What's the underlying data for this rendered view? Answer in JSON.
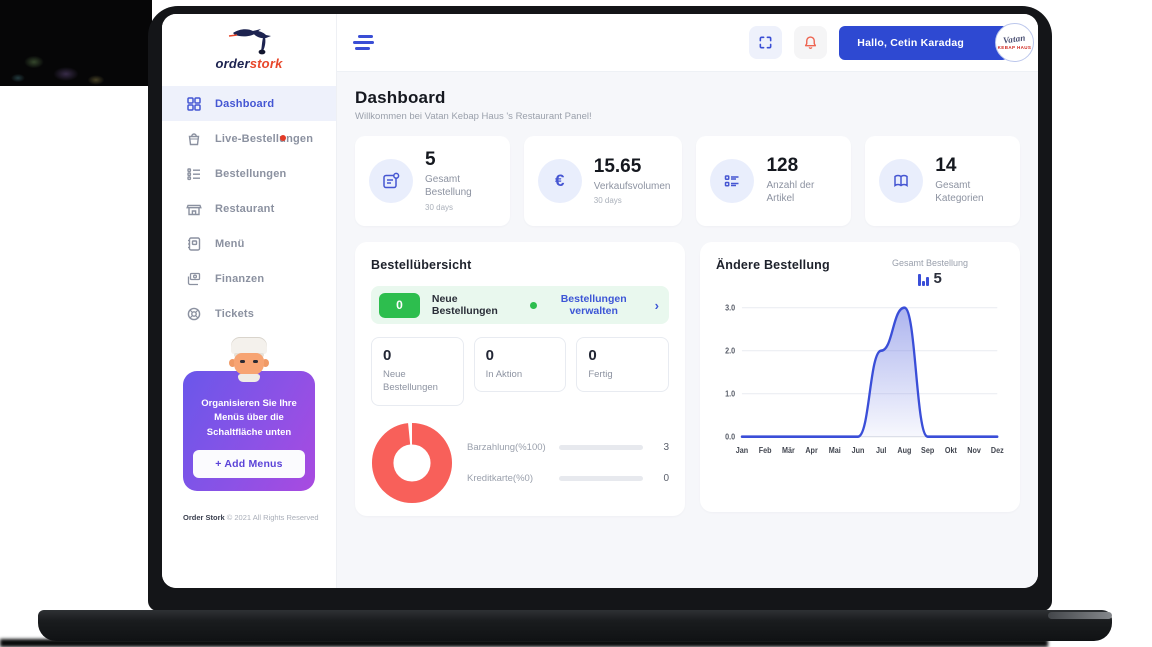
{
  "brand": {
    "word_primary": "order",
    "word_accent": "stork"
  },
  "topbar": {
    "greeting": "Hallo, Cetin Karadag",
    "avatar_line1": "Vatan",
    "avatar_line2": "KEBAP HAUS"
  },
  "sidebar": {
    "items": [
      {
        "label": "Dashboard"
      },
      {
        "label": "Live-Bestellungen"
      },
      {
        "label": "Bestellungen"
      },
      {
        "label": "Restaurant"
      },
      {
        "label": "Menü"
      },
      {
        "label": "Finanzen"
      },
      {
        "label": "Tickets"
      }
    ],
    "promo": {
      "message": "Organisieren Sie Ihre Menüs über die Schaltfläche unten",
      "button_label": "+ Add Menus"
    },
    "footer": {
      "brand": "Order Stork",
      "text": "© 2021 All Rights Reserved"
    }
  },
  "page": {
    "title": "Dashboard",
    "subtitle": "Willkommen bei Vatan Kebap Haus 's Restaurant Panel!"
  },
  "stats": [
    {
      "value": "5",
      "label": "Gesamt Bestellung",
      "sub": "30 days"
    },
    {
      "value": "15.65",
      "label": "Verkaufsvolumen",
      "sub": "30 days"
    },
    {
      "value": "128",
      "label": "Anzahl der Artikel",
      "sub": ""
    },
    {
      "value": "14",
      "label": "Gesamt Kategorien",
      "sub": ""
    }
  ],
  "order_overview": {
    "title": "Bestellübersicht",
    "banner": {
      "badge": "0",
      "label": "Neue Bestellungen",
      "link_label": "Bestellungen verwalten"
    },
    "boxes": [
      {
        "value": "0",
        "label": "Neue Bestellungen"
      },
      {
        "value": "0",
        "label": "In Aktion"
      },
      {
        "value": "0",
        "label": "Fertig"
      }
    ]
  },
  "colors": {
    "accent": "#3a4ed5",
    "donut": "#f8605a",
    "bar_fill": "#f3653e",
    "green": "#2dbe4e"
  },
  "chart_data": [
    {
      "type": "pie",
      "labels": [
        "Barzahlung(%100)",
        "Kreditkarte(%0)"
      ],
      "values": [
        3,
        0
      ],
      "colors": [
        "#f8605a",
        "#e7e9ee"
      ],
      "hole": 0.55,
      "legend_position": "right"
    },
    {
      "type": "area",
      "title": "Ändere Bestellung",
      "categories": [
        "Jan",
        "Feb",
        "Mär",
        "Apr",
        "Mai",
        "Jun",
        "Jul",
        "Aug",
        "Sep",
        "Okt",
        "Nov",
        "Dez"
      ],
      "values": [
        0,
        0,
        0,
        0,
        0,
        0,
        2,
        3,
        0,
        0,
        0,
        0
      ],
      "legend": "Gesamt Bestellung",
      "legend_value": 5,
      "xlabel": "",
      "ylabel": "",
      "ylim": [
        0,
        3
      ],
      "yticks": [
        "0.0",
        "1.0",
        "2.0",
        "3.0"
      ],
      "grid": true,
      "line_color": "#3a4ed8",
      "fill_color": "#5b6ade"
    }
  ]
}
